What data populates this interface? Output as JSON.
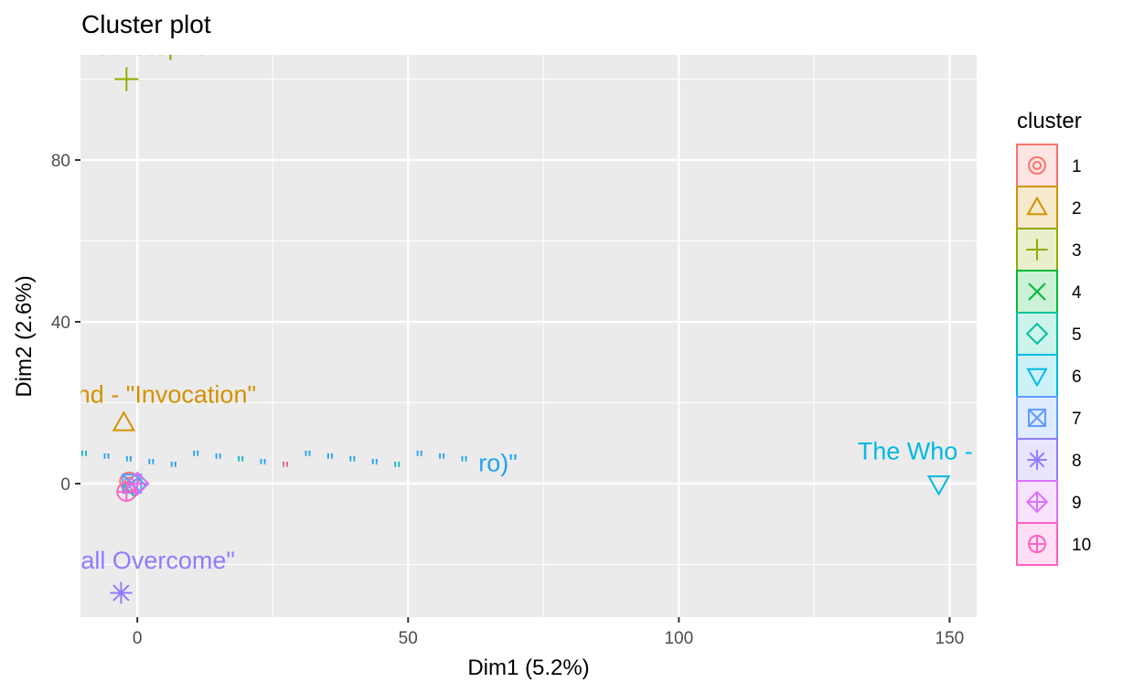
{
  "chart_data": {
    "type": "scatter",
    "title": "Cluster plot",
    "xlabel": "Dim1 (5.2%)",
    "ylabel": "Dim2 (2.6%)",
    "xlim": [
      -10.5,
      155
    ],
    "ylim": [
      -33,
      106
    ],
    "x_ticks": [
      0,
      50,
      100,
      150
    ],
    "y_ticks": [
      0,
      40,
      80
    ],
    "grid": true,
    "legend": {
      "title": "cluster",
      "position": "right",
      "entries": [
        "1",
        "2",
        "3",
        "4",
        "5",
        "6",
        "7",
        "8",
        "9",
        "10"
      ]
    },
    "series": [
      {
        "cluster": "1",
        "color": "#F8766D",
        "shape": "circle",
        "points": [
          {
            "x": -1.5,
            "y": 0.5
          }
        ]
      },
      {
        "cluster": "2",
        "color": "#D39200",
        "shape": "triangle",
        "points": [
          {
            "x": -2.5,
            "y": 15
          }
        ],
        "labels": [
          {
            "x": -2.5,
            "y": 20,
            "text": "tring Band - \"Invocation\""
          }
        ]
      },
      {
        "cluster": "3",
        "color": "#93AA00",
        "shape": "plus",
        "points": [
          {
            "x": -2,
            "y": 100
          }
        ],
        "labels": [
          {
            "x": -2,
            "y": 106,
            "text": "ead -  St. Stephen"
          }
        ]
      },
      {
        "cluster": "4",
        "color": "#00BA38",
        "shape": "cross",
        "points": [
          {
            "x": -1,
            "y": 0
          }
        ]
      },
      {
        "cluster": "5",
        "color": "#00C19F",
        "shape": "diamond",
        "points": [
          {
            "x": -0.5,
            "y": -0.5
          }
        ]
      },
      {
        "cluster": "6",
        "color": "#00B9E3",
        "shape": "triangle-down",
        "points": [
          {
            "x": 148,
            "y": 0
          }
        ],
        "labels": [
          {
            "x": 148,
            "y": 6,
            "text": "The Who - \"Ch"
          }
        ]
      },
      {
        "cluster": "7",
        "color": "#619CFF",
        "shape": "square-cross",
        "points": [
          {
            "x": -1,
            "y": 0
          }
        ]
      },
      {
        "cluster": "8",
        "color": "#8F7CFF",
        "shape": "asterisk",
        "points": [
          {
            "x": -3,
            "y": -27
          }
        ],
        "labels": [
          {
            "x": -3,
            "y": -21,
            "text": "We Shall Overcome\""
          }
        ]
      },
      {
        "cluster": "9",
        "color": "#DB72FB",
        "shape": "diamond-plus",
        "points": [
          {
            "x": 0,
            "y": 0
          }
        ]
      },
      {
        "cluster": "10",
        "color": "#FF61C3",
        "shape": "circle-plus",
        "points": [
          {
            "x": -2,
            "y": -2
          }
        ]
      }
    ],
    "overplotted_labels": {
      "note": "dense overlapping text labels near origin",
      "text": "\"",
      "count": 18
    },
    "overplot_fragments": [
      "ro)\""
    ]
  }
}
